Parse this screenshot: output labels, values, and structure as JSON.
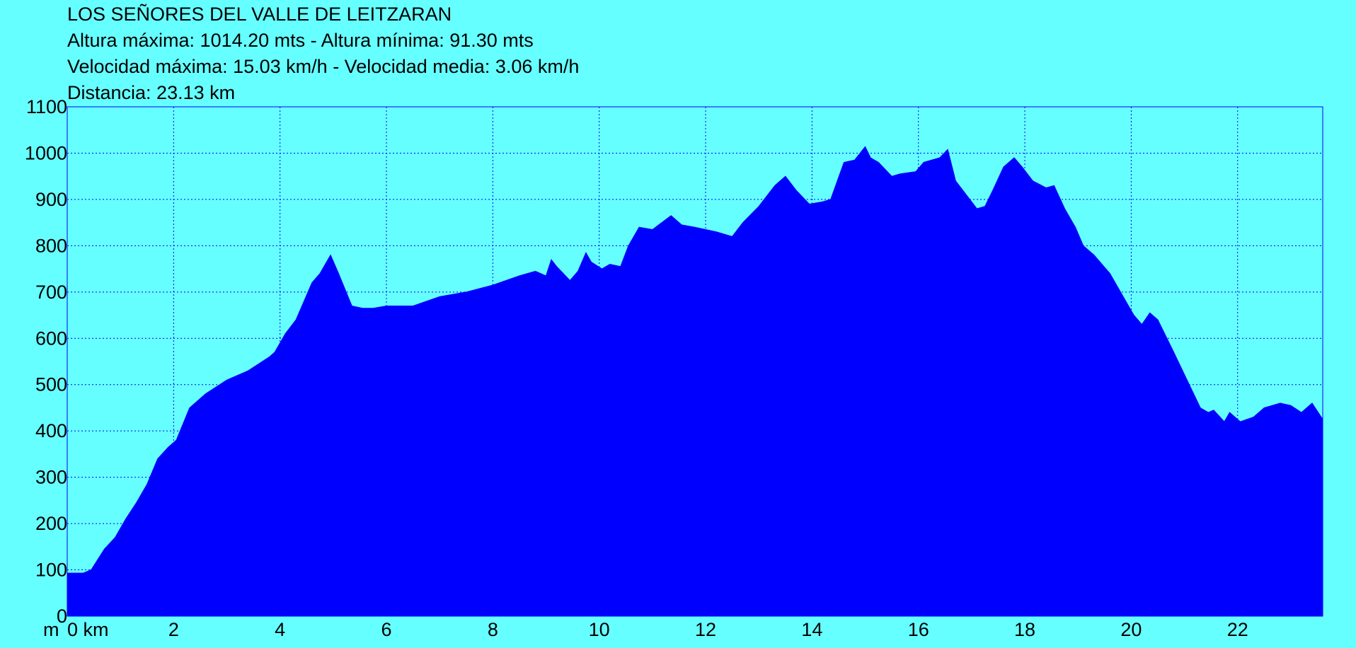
{
  "header": {
    "title": "LOS SEÑORES DEL VALLE DE LEITZARAN",
    "line2": "Altura máxima: 1014.20 mts - Altura mínima: 91.30 mts",
    "line3": "Velocidad máxima: 15.03 km/h - Velocidad media: 3.06 km/h",
    "line4": "Distancia: 23.13 km"
  },
  "colors": {
    "background": "#66ffff",
    "fill": "#0000ff",
    "grid": "#0000ff",
    "text": "#000000"
  },
  "chart_data": {
    "type": "area",
    "title": "LOS SEÑORES DEL VALLE DE LEITZARAN",
    "xlabel": "km",
    "ylabel": "m",
    "xlim": [
      0,
      23.6
    ],
    "ylim": [
      0,
      1100
    ],
    "grid": true,
    "x_ticks": [
      0,
      2,
      4,
      6,
      8,
      10,
      12,
      14,
      16,
      18,
      20,
      22
    ],
    "x_tick_labels": [
      "0 km",
      "2",
      "4",
      "6",
      "8",
      "10",
      "12",
      "14",
      "16",
      "18",
      "20",
      "22"
    ],
    "y_ticks": [
      0,
      100,
      200,
      300,
      400,
      500,
      600,
      700,
      800,
      900,
      1000,
      1100
    ],
    "y_tick_labels": [
      "0",
      "100",
      "200",
      "300",
      "400",
      "500",
      "600",
      "700",
      "800",
      "900",
      "1000",
      "1100"
    ],
    "y_unit_label": "m",
    "series": [
      {
        "name": "",
        "x": [
          0,
          0.3,
          0.45,
          0.7,
          0.9,
          1.1,
          1.3,
          1.5,
          1.7,
          1.9,
          2.05,
          2.3,
          2.6,
          3.0,
          3.4,
          3.6,
          3.8,
          3.9,
          4.1,
          4.3,
          4.6,
          4.75,
          4.85,
          4.95,
          5.1,
          5.35,
          5.55,
          5.75,
          6.0,
          6.5,
          7.0,
          7.5,
          8.0,
          8.5,
          8.8,
          9.0,
          9.1,
          9.2,
          9.45,
          9.6,
          9.75,
          9.85,
          10.05,
          10.2,
          10.4,
          10.55,
          10.75,
          11.0,
          11.35,
          11.55,
          11.8,
          12.2,
          12.5,
          12.7,
          13.0,
          13.3,
          13.5,
          13.7,
          13.95,
          14.2,
          14.35,
          14.6,
          14.8,
          15.0,
          15.1,
          15.25,
          15.5,
          15.65,
          15.95,
          16.1,
          16.4,
          16.55,
          16.7,
          16.9,
          17.1,
          17.25,
          17.4,
          17.6,
          17.8,
          17.95,
          18.15,
          18.4,
          18.55,
          18.75,
          18.95,
          19.1,
          19.3,
          19.6,
          19.85,
          20.05,
          20.2,
          20.35,
          20.5,
          20.8,
          21.05,
          21.3,
          21.45,
          21.55,
          21.75,
          21.85,
          22.05,
          22.3,
          22.5,
          22.8,
          23.0,
          23.2,
          23.4,
          23.6
        ],
        "y": [
          93,
          93,
          100,
          145,
          170,
          210,
          245,
          285,
          340,
          365,
          380,
          450,
          480,
          510,
          530,
          545,
          560,
          570,
          610,
          640,
          720,
          740,
          760,
          780,
          740,
          670,
          665,
          665,
          670,
          670,
          690,
          700,
          715,
          735,
          745,
          735,
          770,
          755,
          725,
          745,
          785,
          765,
          750,
          760,
          755,
          800,
          840,
          835,
          865,
          845,
          840,
          830,
          820,
          850,
          885,
          930,
          950,
          920,
          890,
          895,
          900,
          980,
          985,
          1014,
          990,
          980,
          950,
          955,
          960,
          980,
          990,
          1008,
          940,
          910,
          880,
          885,
          920,
          970,
          990,
          970,
          940,
          925,
          930,
          880,
          840,
          800,
          780,
          740,
          690,
          650,
          630,
          655,
          640,
          570,
          510,
          450,
          440,
          445,
          420,
          440,
          420,
          430,
          450,
          460,
          455,
          440,
          460,
          425
        ]
      }
    ]
  }
}
